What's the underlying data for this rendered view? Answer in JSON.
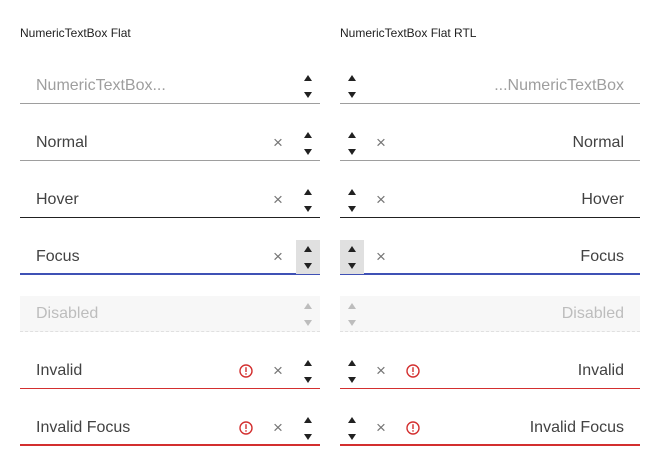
{
  "columns": {
    "flat": {
      "title": "NumericTextBox Flat"
    },
    "flat_rtl": {
      "title": "NumericTextBox Flat RTL"
    }
  },
  "fields": {
    "placeholder": {
      "placeholder": "NumericTextBox...",
      "placeholder_rtl": "...NumericTextBox",
      "value": ""
    },
    "normal": {
      "value": "Normal"
    },
    "hover": {
      "value": "Hover"
    },
    "focus": {
      "value": "Focus"
    },
    "disabled": {
      "value": "Disabled"
    },
    "invalid": {
      "value": "Invalid"
    },
    "invalid_focus": {
      "value": "Invalid Focus"
    }
  },
  "icons": {
    "clear": "×",
    "spin_up": "triangle-up",
    "spin_down": "triangle-down",
    "error": "exclamation-circle"
  },
  "colors": {
    "focus_underline": "#3f51b5",
    "invalid_underline": "#d32f2f",
    "error_icon": "#d32f2f",
    "disabled_background": "#f7f7f7"
  }
}
